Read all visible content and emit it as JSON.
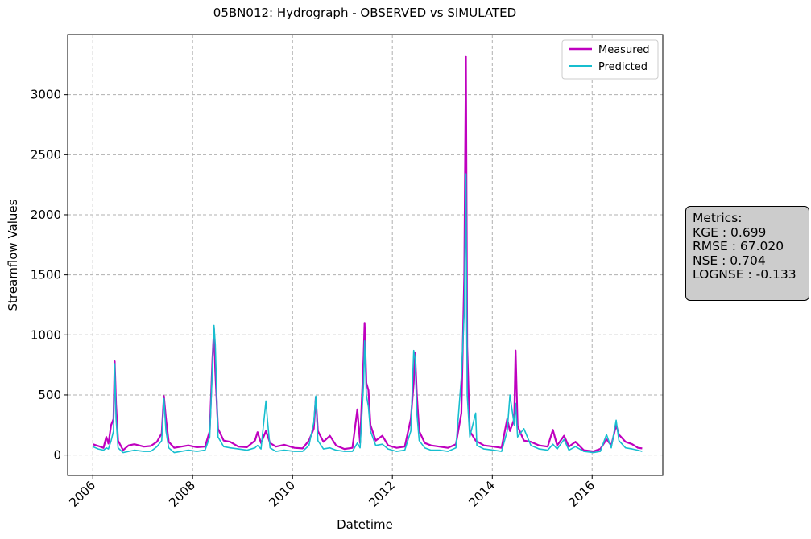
{
  "chart_data": {
    "type": "line",
    "title": "05BN012: Hydrograph - OBSERVED vs SIMULATED",
    "xlabel": "Datetime",
    "ylabel": "Streamflow Values",
    "xlim": [
      "2005-07-01",
      "2017-06-01"
    ],
    "ylim": [
      -170,
      3500
    ],
    "x_ticks": [
      "2006",
      "2008",
      "2010",
      "2012",
      "2014",
      "2016"
    ],
    "y_ticks": [
      0,
      500,
      1000,
      1500,
      2000,
      2500,
      3000
    ],
    "grid": true,
    "legend_position": "top-right",
    "series": [
      {
        "name": "Measured",
        "color": "#bf00bf",
        "points": [
          [
            "2006-01-01",
            90
          ],
          [
            "2006-02-10",
            75
          ],
          [
            "2006-03-20",
            60
          ],
          [
            "2006-04-10",
            150
          ],
          [
            "2006-04-25",
            95
          ],
          [
            "2006-05-15",
            250
          ],
          [
            "2006-06-01",
            300
          ],
          [
            "2006-06-10",
            780
          ],
          [
            "2006-06-20",
            420
          ],
          [
            "2006-07-05",
            120
          ],
          [
            "2006-08-10",
            40
          ],
          [
            "2006-09-20",
            80
          ],
          [
            "2006-11-01",
            90
          ],
          [
            "2007-01-10",
            70
          ],
          [
            "2007-03-01",
            75
          ],
          [
            "2007-04-15",
            110
          ],
          [
            "2007-05-20",
            180
          ],
          [
            "2007-06-05",
            490
          ],
          [
            "2007-06-20",
            300
          ],
          [
            "2007-07-10",
            110
          ],
          [
            "2007-08-20",
            60
          ],
          [
            "2007-10-10",
            70
          ],
          [
            "2007-12-01",
            80
          ],
          [
            "2008-02-01",
            65
          ],
          [
            "2008-04-01",
            70
          ],
          [
            "2008-05-05",
            200
          ],
          [
            "2008-05-25",
            800
          ],
          [
            "2008-06-05",
            1050
          ],
          [
            "2008-06-15",
            700
          ],
          [
            "2008-07-05",
            220
          ],
          [
            "2008-08-15",
            120
          ],
          [
            "2008-10-01",
            110
          ],
          [
            "2008-12-01",
            70
          ],
          [
            "2009-02-01",
            65
          ],
          [
            "2009-04-01",
            120
          ],
          [
            "2009-04-20",
            190
          ],
          [
            "2009-05-15",
            100
          ],
          [
            "2009-06-20",
            200
          ],
          [
            "2009-07-20",
            100
          ],
          [
            "2009-09-01",
            70
          ],
          [
            "2009-11-01",
            85
          ],
          [
            "2010-01-15",
            60
          ],
          [
            "2010-03-15",
            55
          ],
          [
            "2010-05-01",
            120
          ],
          [
            "2010-06-05",
            220
          ],
          [
            "2010-06-20",
            480
          ],
          [
            "2010-07-05",
            200
          ],
          [
            "2010-08-15",
            110
          ],
          [
            "2010-10-01",
            160
          ],
          [
            "2010-11-15",
            80
          ],
          [
            "2011-01-15",
            50
          ],
          [
            "2011-03-15",
            60
          ],
          [
            "2011-04-20",
            380
          ],
          [
            "2011-05-10",
            100
          ],
          [
            "2011-06-05",
            820
          ],
          [
            "2011-06-12",
            1100
          ],
          [
            "2011-06-25",
            600
          ],
          [
            "2011-07-10",
            540
          ],
          [
            "2011-07-25",
            250
          ],
          [
            "2011-09-01",
            120
          ],
          [
            "2011-10-20",
            160
          ],
          [
            "2011-12-01",
            80
          ],
          [
            "2012-02-01",
            60
          ],
          [
            "2012-04-01",
            70
          ],
          [
            "2012-05-15",
            300
          ],
          [
            "2012-06-05",
            600
          ],
          [
            "2012-06-15",
            850
          ],
          [
            "2012-06-28",
            500
          ],
          [
            "2012-07-15",
            200
          ],
          [
            "2012-08-25",
            100
          ],
          [
            "2012-10-10",
            80
          ],
          [
            "2012-12-10",
            70
          ],
          [
            "2013-02-10",
            60
          ],
          [
            "2013-04-10",
            90
          ],
          [
            "2013-05-20",
            350
          ],
          [
            "2013-06-10",
            1500
          ],
          [
            "2013-06-22",
            3320
          ],
          [
            "2013-07-01",
            900
          ],
          [
            "2013-07-20",
            200
          ],
          [
            "2013-09-01",
            120
          ],
          [
            "2013-11-01",
            80
          ],
          [
            "2014-01-10",
            70
          ],
          [
            "2014-03-10",
            60
          ],
          [
            "2014-04-20",
            300
          ],
          [
            "2014-05-10",
            200
          ],
          [
            "2014-06-10",
            300
          ],
          [
            "2014-06-20",
            870
          ],
          [
            "2014-07-05",
            240
          ],
          [
            "2014-08-20",
            120
          ],
          [
            "2014-10-10",
            110
          ],
          [
            "2014-12-10",
            80
          ],
          [
            "2015-02-10",
            70
          ],
          [
            "2015-03-20",
            210
          ],
          [
            "2015-04-20",
            80
          ],
          [
            "2015-06-10",
            160
          ],
          [
            "2015-07-15",
            70
          ],
          [
            "2015-09-01",
            110
          ],
          [
            "2015-11-01",
            40
          ],
          [
            "2016-01-10",
            30
          ],
          [
            "2016-03-01",
            50
          ],
          [
            "2016-04-15",
            130
          ],
          [
            "2016-05-20",
            80
          ],
          [
            "2016-06-25",
            250
          ],
          [
            "2016-07-15",
            170
          ],
          [
            "2016-09-01",
            110
          ],
          [
            "2016-10-20",
            90
          ],
          [
            "2016-12-01",
            60
          ],
          [
            "2017-01-01",
            55
          ]
        ]
      },
      {
        "name": "Predicted",
        "color": "#17becf",
        "points": [
          [
            "2006-01-01",
            70
          ],
          [
            "2006-02-10",
            50
          ],
          [
            "2006-03-20",
            40
          ],
          [
            "2006-04-10",
            60
          ],
          [
            "2006-04-25",
            50
          ],
          [
            "2006-05-15",
            120
          ],
          [
            "2006-06-01",
            200
          ],
          [
            "2006-06-10",
            760
          ],
          [
            "2006-06-20",
            300
          ],
          [
            "2006-07-05",
            60
          ],
          [
            "2006-08-10",
            20
          ],
          [
            "2006-09-20",
            30
          ],
          [
            "2006-11-01",
            40
          ],
          [
            "2007-01-10",
            30
          ],
          [
            "2007-03-01",
            30
          ],
          [
            "2007-04-15",
            70
          ],
          [
            "2007-05-20",
            120
          ],
          [
            "2007-06-05",
            470
          ],
          [
            "2007-06-20",
            200
          ],
          [
            "2007-07-10",
            60
          ],
          [
            "2007-08-20",
            20
          ],
          [
            "2007-10-10",
            30
          ],
          [
            "2007-12-01",
            40
          ],
          [
            "2008-02-01",
            30
          ],
          [
            "2008-04-01",
            40
          ],
          [
            "2008-05-05",
            150
          ],
          [
            "2008-05-25",
            750
          ],
          [
            "2008-06-05",
            1080
          ],
          [
            "2008-06-15",
            920
          ],
          [
            "2008-07-05",
            150
          ],
          [
            "2008-08-15",
            70
          ],
          [
            "2008-10-01",
            60
          ],
          [
            "2008-12-01",
            50
          ],
          [
            "2009-02-01",
            40
          ],
          [
            "2009-04-01",
            60
          ],
          [
            "2009-04-20",
            80
          ],
          [
            "2009-05-15",
            50
          ],
          [
            "2009-06-20",
            450
          ],
          [
            "2009-07-01",
            300
          ],
          [
            "2009-07-20",
            60
          ],
          [
            "2009-09-01",
            30
          ],
          [
            "2009-11-01",
            40
          ],
          [
            "2010-01-15",
            30
          ],
          [
            "2010-03-15",
            30
          ],
          [
            "2010-05-01",
            80
          ],
          [
            "2010-06-05",
            270
          ],
          [
            "2010-06-20",
            490
          ],
          [
            "2010-07-05",
            120
          ],
          [
            "2010-08-15",
            50
          ],
          [
            "2010-10-01",
            60
          ],
          [
            "2010-11-15",
            40
          ],
          [
            "2011-01-15",
            30
          ],
          [
            "2011-03-15",
            30
          ],
          [
            "2011-04-20",
            100
          ],
          [
            "2011-05-10",
            60
          ],
          [
            "2011-06-05",
            600
          ],
          [
            "2011-06-12",
            950
          ],
          [
            "2011-06-25",
            500
          ],
          [
            "2011-07-10",
            400
          ],
          [
            "2011-07-25",
            200
          ],
          [
            "2011-09-01",
            80
          ],
          [
            "2011-10-20",
            90
          ],
          [
            "2011-12-01",
            50
          ],
          [
            "2012-02-01",
            30
          ],
          [
            "2012-04-01",
            40
          ],
          [
            "2012-05-15",
            200
          ],
          [
            "2012-06-05",
            870
          ],
          [
            "2012-06-15",
            800
          ],
          [
            "2012-06-28",
            350
          ],
          [
            "2012-07-15",
            120
          ],
          [
            "2012-08-25",
            60
          ],
          [
            "2012-10-10",
            40
          ],
          [
            "2012-12-10",
            40
          ],
          [
            "2013-02-10",
            30
          ],
          [
            "2013-04-10",
            60
          ],
          [
            "2013-05-20",
            650
          ],
          [
            "2013-06-10",
            1200
          ],
          [
            "2013-06-22",
            2340
          ],
          [
            "2013-07-01",
            500
          ],
          [
            "2013-07-20",
            150
          ],
          [
            "2013-09-01",
            350
          ],
          [
            "2013-09-10",
            80
          ],
          [
            "2013-11-01",
            50
          ],
          [
            "2014-01-10",
            40
          ],
          [
            "2014-03-10",
            30
          ],
          [
            "2014-04-20",
            200
          ],
          [
            "2014-05-10",
            500
          ],
          [
            "2014-06-10",
            250
          ],
          [
            "2014-06-20",
            430
          ],
          [
            "2014-07-05",
            150
          ],
          [
            "2014-08-20",
            220
          ],
          [
            "2014-10-10",
            80
          ],
          [
            "2014-12-10",
            50
          ],
          [
            "2015-02-10",
            40
          ],
          [
            "2015-03-20",
            90
          ],
          [
            "2015-04-20",
            50
          ],
          [
            "2015-06-10",
            130
          ],
          [
            "2015-07-15",
            40
          ],
          [
            "2015-09-01",
            70
          ],
          [
            "2015-11-01",
            30
          ],
          [
            "2016-01-10",
            20
          ],
          [
            "2016-03-01",
            30
          ],
          [
            "2016-04-15",
            170
          ],
          [
            "2016-05-20",
            60
          ],
          [
            "2016-06-25",
            290
          ],
          [
            "2016-07-15",
            120
          ],
          [
            "2016-09-01",
            60
          ],
          [
            "2016-10-20",
            50
          ],
          [
            "2016-12-01",
            40
          ],
          [
            "2017-01-01",
            30
          ]
        ]
      }
    ]
  },
  "metrics": {
    "heading": "Metrics:",
    "lines": [
      "KGE : 0.699",
      "RMSE : 67.020",
      "NSE : 0.704",
      "LOGNSE : -0.133"
    ]
  }
}
